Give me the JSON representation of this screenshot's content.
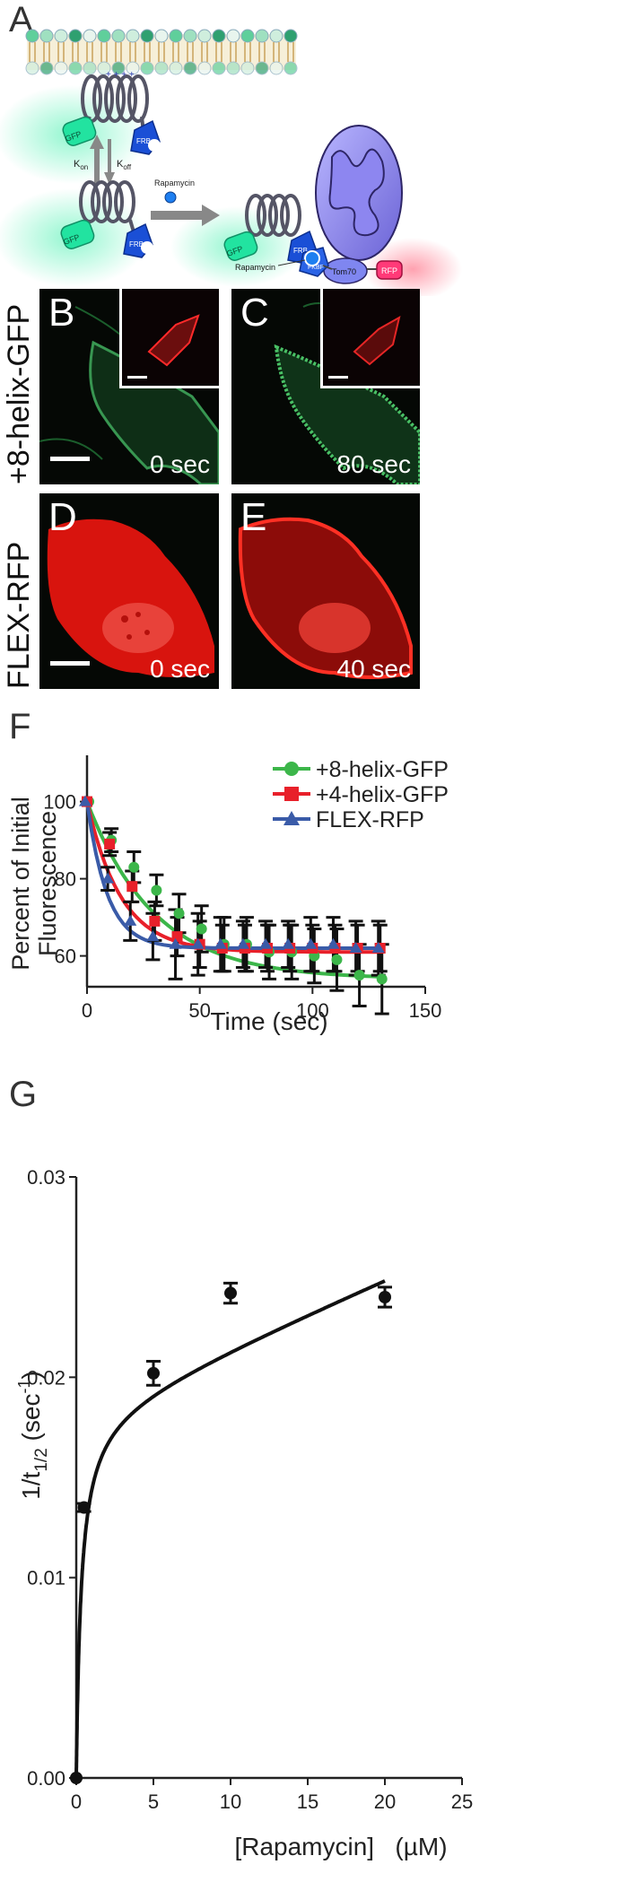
{
  "panels": {
    "a": "A",
    "b": "B",
    "c": "C",
    "d": "D",
    "e": "E",
    "f": "F",
    "g": "G"
  },
  "schematic": {
    "gfp": "GFP",
    "frb": "FRB",
    "kon": "K",
    "kon_sub": "on",
    "koff": "K",
    "koff_sub": "off",
    "rapamycin_top": "Rapamycin",
    "rapamycin_bottom": "Rapamycin",
    "fkbp": "FKBP",
    "tom70": "Tom70",
    "rfp": "RFP"
  },
  "micrographs": {
    "row1_label": "+8-helix-GFP",
    "row2_label": "FLEX-RFP",
    "b_time": "0 sec",
    "c_time": "80 sec",
    "d_time": "0 sec",
    "e_time": "40 sec",
    "colors": {
      "gfp": "#3fbf5a",
      "rfp": "#e81a12",
      "background": "#050805"
    }
  },
  "chart_data": [
    {
      "id": "F",
      "type": "line",
      "title": "",
      "xlabel": "Time (sec)",
      "ylabel_line1": "Percent of Initial",
      "ylabel_line2": "Fluorescence",
      "xlim": [
        0,
        150
      ],
      "ylim": [
        52,
        112
      ],
      "xticks": [
        0,
        50,
        100,
        150
      ],
      "yticks": [
        60,
        80,
        100
      ],
      "legend_position": "top-right",
      "series": [
        {
          "name": "+8-helix-GFP",
          "color": "#3cb64a",
          "marker": "circle",
          "x": [
            0,
            10,
            20,
            30,
            40,
            50,
            60,
            70,
            80,
            90,
            100,
            110,
            120,
            130
          ],
          "y": [
            100,
            90,
            83,
            77,
            71,
            67,
            63,
            63,
            61,
            61,
            60,
            59,
            55,
            54
          ],
          "err": [
            0,
            3,
            4,
            4,
            5,
            6,
            7,
            7,
            7,
            7,
            7,
            8,
            8,
            9
          ],
          "fit_tau": 30,
          "fit_plateau": 54
        },
        {
          "name": "+4-helix-GFP",
          "color": "#e8202a",
          "marker": "square",
          "x": [
            0,
            10,
            20,
            30,
            40,
            50,
            60,
            70,
            80,
            90,
            100,
            110,
            120,
            130
          ],
          "y": [
            100,
            89,
            78,
            69,
            65,
            63,
            62,
            62,
            62,
            62,
            62,
            62,
            62,
            62
          ],
          "err": [
            0,
            3,
            4,
            5,
            5,
            6,
            6,
            6,
            6,
            6,
            6,
            6,
            6,
            6
          ],
          "fit_tau": 15,
          "fit_plateau": 61
        },
        {
          "name": "FLEX-RFP",
          "color": "#3a5ba8",
          "marker": "triangle",
          "x": [
            0,
            10,
            20,
            30,
            40,
            50,
            60,
            70,
            80,
            90,
            100,
            110,
            120,
            130
          ],
          "y": [
            100,
            80,
            69,
            65,
            63,
            63,
            63,
            63,
            63,
            63,
            63,
            63,
            62,
            62
          ],
          "err": [
            0,
            3,
            5,
            6,
            9,
            8,
            7,
            6,
            6,
            6,
            7,
            7,
            7,
            7
          ],
          "fit_tau": 9,
          "fit_plateau": 62
        }
      ]
    },
    {
      "id": "G",
      "type": "scatter",
      "title": "",
      "xlabel": "[Rapamycin]   (µM)",
      "ylabel_main": "1/t",
      "ylabel_sub": "1/2",
      "ylabel_tail": " (sec",
      "ylabel_sup": "-1",
      "ylabel_close": ")",
      "xlim": [
        0,
        25
      ],
      "ylim": [
        0,
        0.03
      ],
      "xticks": [
        0,
        5,
        10,
        15,
        20,
        25
      ],
      "yticks": [
        "0.00",
        "0.01",
        "0.02",
        "0.03"
      ],
      "color": "#111111",
      "points": {
        "x": [
          0,
          0.5,
          5,
          10,
          20
        ],
        "y": [
          0.0,
          0.0135,
          0.0202,
          0.0242,
          0.024
        ],
        "err": [
          0,
          0.0002,
          0.0006,
          0.0005,
          0.0005
        ]
      },
      "fit": {
        "bmax": 0.0185,
        "kd": 0.32,
        "ns": 0.00033
      }
    }
  ]
}
